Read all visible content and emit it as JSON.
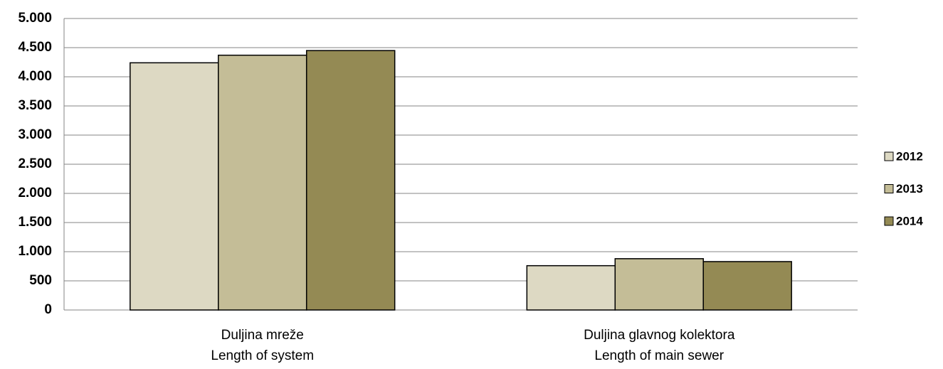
{
  "chart_data": {
    "type": "bar",
    "categories": [
      [
        "Duljina mreže",
        "Length of system"
      ],
      [
        "Duljina glavnog kolektora",
        "Length of main sewer"
      ]
    ],
    "series": [
      {
        "name": "2012",
        "color": "#ddd9c3",
        "values": [
          4240,
          760
        ]
      },
      {
        "name": "2013",
        "color": "#c4bd97",
        "values": [
          4370,
          880
        ]
      },
      {
        "name": "2014",
        "color": "#948a54",
        "values": [
          4450,
          830
        ]
      }
    ],
    "ylim": [
      0,
      5000
    ],
    "yticks": [
      0,
      500,
      {
        "value": 1000,
        "label": "1.000"
      },
      {
        "value": 1500,
        "label": "1.500"
      },
      {
        "value": 2000,
        "label": "2.000"
      },
      {
        "value": 2500,
        "label": "2.500"
      },
      {
        "value": 3000,
        "label": "3.000"
      },
      {
        "value": 3500,
        "label": "3.500"
      },
      {
        "value": 4000,
        "label": "4.000"
      },
      {
        "value": 4500,
        "label": "4.500"
      },
      {
        "value": 5000,
        "label": "5.000"
      }
    ],
    "grid": true,
    "legend": "right"
  }
}
